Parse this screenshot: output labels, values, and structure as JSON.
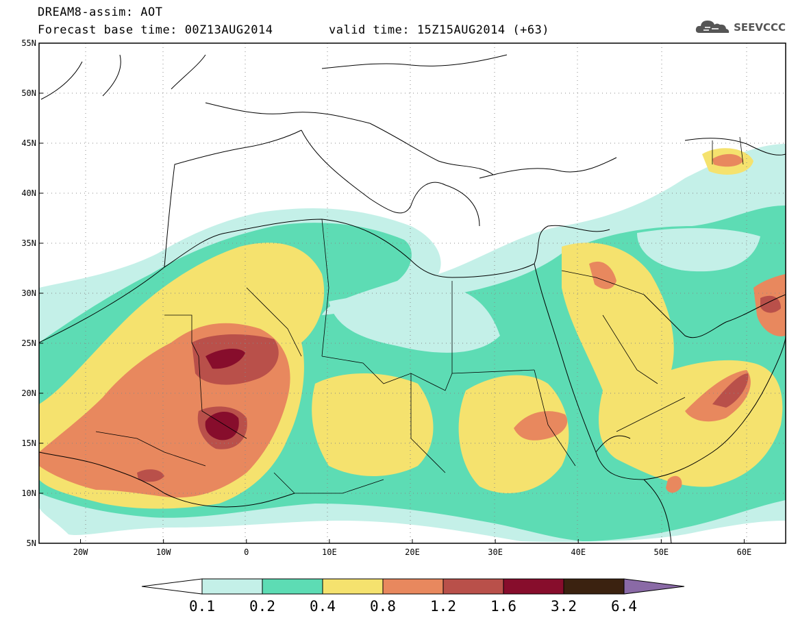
{
  "header": {
    "title_line1": "DREAM8-assim: AOT",
    "title_line2": "Forecast base time: 00Z13AUG2014",
    "title_line3": "valid time: 15Z15AUG2014 (+63)",
    "logo_text": "SEEVCCC",
    "logo_icon": "cloud-icon"
  },
  "axes": {
    "lon_labels": [
      "20W",
      "10W",
      "0",
      "10E",
      "20E",
      "30E",
      "40E",
      "50E",
      "60E"
    ],
    "lat_labels": [
      "55N",
      "50N",
      "45N",
      "40N",
      "35N",
      "30N",
      "25N",
      "20N",
      "15N",
      "10N",
      "5N"
    ],
    "lon_values": [
      -20,
      -10,
      0,
      10,
      20,
      30,
      40,
      50,
      60
    ],
    "lat_values": [
      55,
      50,
      45,
      40,
      35,
      30,
      25,
      20,
      15,
      10,
      5
    ],
    "lon_range": [
      -25,
      65
    ],
    "lat_range": [
      5,
      55
    ],
    "grid": "dotted"
  },
  "colorbar": {
    "labels": [
      "0.1",
      "0.2",
      "0.4",
      "0.8",
      "1.2",
      "1.6",
      "3.2",
      "6.4"
    ],
    "colors": [
      "#c4f0e8",
      "#5ddcb4",
      "#f5e26e",
      "#e8885e",
      "#b9504a",
      "#870d2c",
      "#3b2210",
      "#8a6aa6"
    ]
  },
  "colors": {
    "low": "#c4f0e8",
    "mid": "#5ddcb4",
    "mod": "#f5e26e",
    "high": "#e8885e",
    "vhigh": "#b9504a",
    "ext": "#870d2c"
  }
}
